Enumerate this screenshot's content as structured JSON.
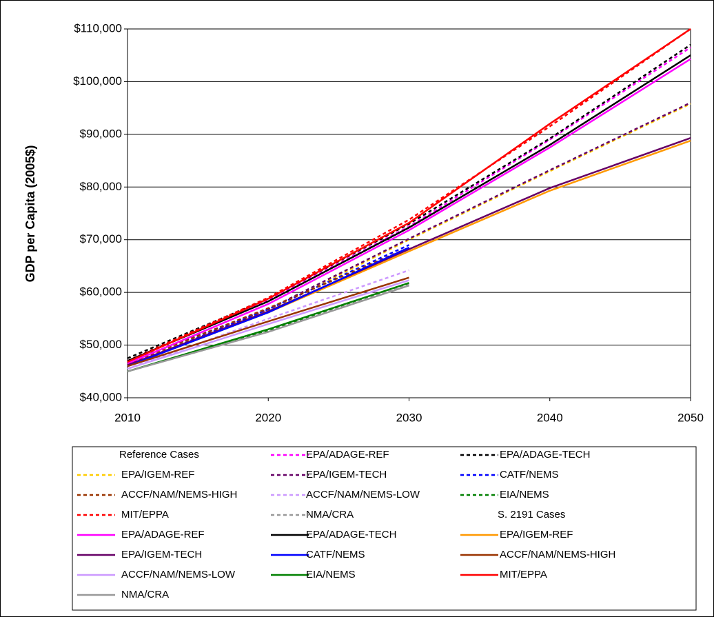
{
  "chart_data": {
    "type": "line",
    "y_label": "GDP per Capita (2005$)",
    "x": [
      2010,
      2020,
      2030,
      2040,
      2050
    ],
    "xlim": [
      2010,
      2050
    ],
    "xticks": [
      2010,
      2020,
      2030,
      2040,
      2050
    ],
    "ylim": [
      40000,
      110000
    ],
    "yticks": [
      {
        "value": 40000,
        "label": "$40,000"
      },
      {
        "value": 50000,
        "label": "$50,000"
      },
      {
        "value": 60000,
        "label": "$60,000"
      },
      {
        "value": 70000,
        "label": "$70,000"
      },
      {
        "value": 80000,
        "label": "$80,000"
      },
      {
        "value": 90000,
        "label": "$90,000"
      },
      {
        "value": 100000,
        "label": "$100,000"
      },
      {
        "value": 110000,
        "label": "$110,000"
      }
    ],
    "grid": true,
    "series_groups": [
      {
        "name": "Reference Cases",
        "style": "dashed",
        "series": [
          {
            "name": "EPA/ADAGE-REF",
            "color": "#ff00ff",
            "values": [
              47000,
              58500,
              72500,
              89000,
              106500
            ]
          },
          {
            "name": "EPA/ADAGE-TECH",
            "color": "#000000",
            "values": [
              47500,
              58800,
              73000,
              89200,
              107000
            ]
          },
          {
            "name": "EPA/IGEM-REF",
            "color": "#ffcc00",
            "values": [
              46500,
              56500,
              70000,
              83000,
              95800
            ]
          },
          {
            "name": "EPA/IGEM-TECH",
            "color": "#660066",
            "values": [
              46800,
              56800,
              70200,
              83200,
              96000
            ]
          },
          {
            "name": "CATF/NEMS",
            "color": "#0000ff",
            "values": [
              46000,
              56800,
              69000,
              null,
              null
            ]
          },
          {
            "name": "ACCF/NAM/NEMS-HIGH",
            "color": "#993300",
            "values": [
              46500,
              57000,
              68500,
              null,
              null
            ]
          },
          {
            "name": "ACCF/NAM/NEMS-LOW",
            "color": "#cc99ff",
            "values": [
              45500,
              55000,
              64200,
              null,
              null
            ]
          },
          {
            "name": "EIA/NEMS",
            "color": "#008000",
            "values": [
              45000,
              52800,
              61800,
              null,
              null
            ]
          },
          {
            "name": "MIT/EPPA",
            "color": "#ff0000",
            "values": [
              47000,
              59000,
              73800,
              91500,
              110000
            ]
          },
          {
            "name": "NMA/CRA",
            "color": "#999999",
            "values": [
              45000,
              52500,
              61500,
              null,
              null
            ]
          }
        ]
      },
      {
        "name": "S. 2191 Cases",
        "style": "solid",
        "series": [
          {
            "name": "EPA/ADAGE-REF",
            "color": "#ff00ff",
            "values": [
              46500,
              57800,
              71800,
              87500,
              104300
            ]
          },
          {
            "name": "EPA/ADAGE-TECH",
            "color": "#000000",
            "values": [
              47000,
              58300,
              72300,
              88000,
              105000
            ]
          },
          {
            "name": "EPA/IGEM-REF",
            "color": "#ff9900",
            "values": [
              46000,
              56200,
              67800,
              79300,
              88800
            ]
          },
          {
            "name": "EPA/IGEM-TECH",
            "color": "#660066",
            "values": [
              46200,
              56400,
              68200,
              79800,
              89300
            ]
          },
          {
            "name": "CATF/NEMS",
            "color": "#0000ff",
            "values": [
              46000,
              56200,
              68500,
              null,
              null
            ]
          },
          {
            "name": "ACCF/NAM/NEMS-HIGH",
            "color": "#993300",
            "values": [
              46000,
              54500,
              62800,
              null,
              null
            ]
          },
          {
            "name": "ACCF/NAM/NEMS-LOW",
            "color": "#cc99ff",
            "values": [
              45500,
              54000,
              62300,
              null,
              null
            ]
          },
          {
            "name": "EIA/NEMS",
            "color": "#008000",
            "values": [
              45000,
              53000,
              61800,
              null,
              null
            ]
          },
          {
            "name": "MIT/EPPA",
            "color": "#ff0000",
            "values": [
              46800,
              58800,
              73200,
              92000,
              110000
            ]
          },
          {
            "name": "NMA/CRA",
            "color": "#999999",
            "values": [
              45000,
              52500,
              61300,
              null,
              null
            ]
          }
        ]
      }
    ]
  }
}
